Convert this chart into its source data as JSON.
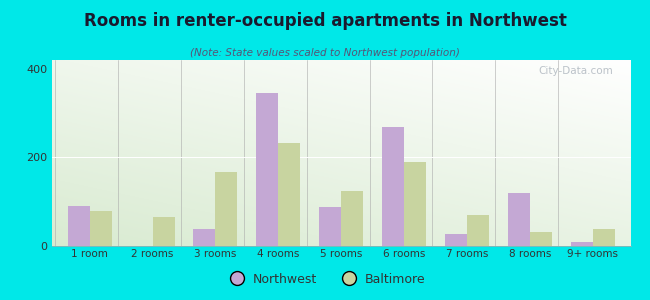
{
  "title": "Rooms in renter-occupied apartments in Northwest",
  "subtitle": "(Note: State values scaled to Northwest population)",
  "categories": [
    "1 room",
    "2 rooms",
    "3 rooms",
    "4 rooms",
    "5 rooms",
    "6 rooms",
    "7 rooms",
    "8 rooms",
    "9+ rooms"
  ],
  "northwest_values": [
    90,
    0,
    38,
    345,
    88,
    268,
    28,
    120,
    8
  ],
  "baltimore_values": [
    78,
    65,
    168,
    232,
    125,
    190,
    70,
    32,
    38
  ],
  "northwest_color": "#c4a8d4",
  "baltimore_color": "#c8d4a0",
  "bg_outer": "#00e8e8",
  "bg_plot_topleft": "#d8ecd8",
  "bg_plot_topright": "#f8f8f8",
  "ylim": [
    0,
    420
  ],
  "yticks": [
    0,
    200,
    400
  ],
  "bar_width": 0.35,
  "legend_labels": [
    "Northwest",
    "Baltimore"
  ],
  "watermark": "City-Data.com",
  "title_color": "#1a1a2e",
  "subtitle_color": "#555577",
  "tick_color": "#333333"
}
